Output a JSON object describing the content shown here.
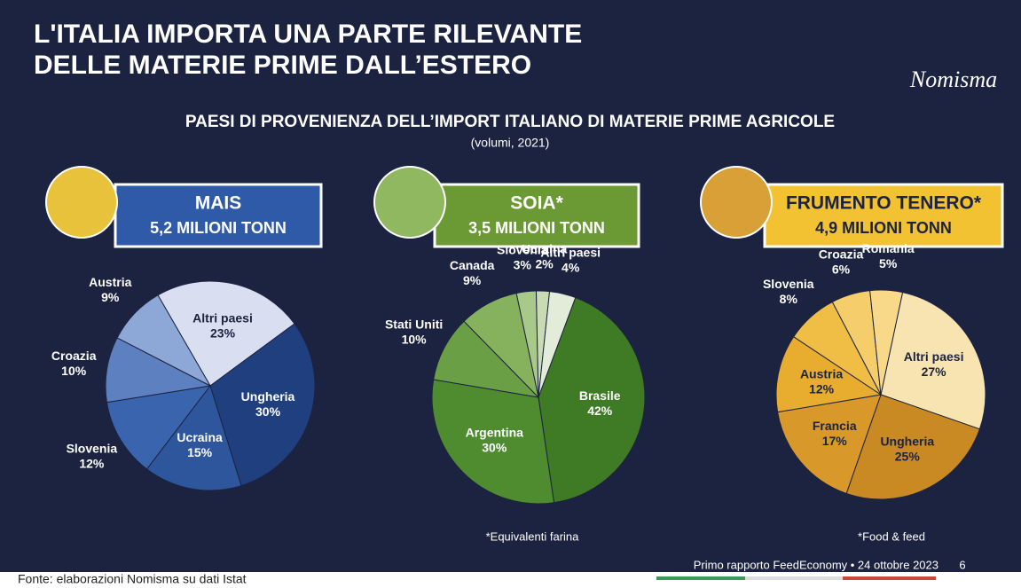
{
  "header": {
    "title_line1": "L'ITALIA IMPORTA UNA PARTE RILEVANTE",
    "title_line2": "DELLE MATERIE PRIME DALL’ESTERO",
    "logo": "Nomisma",
    "subtitle": "PAESI DI PROVENIENZA DELL’IMPORT ITALIANO DI MATERIE PRIME AGRICOLE",
    "subtitle_note": "(volumi, 2021)"
  },
  "chart_data": [
    {
      "type": "pie",
      "title": "MAIS",
      "subtitle": "5,2 MILIONI TONN",
      "categories": [
        "Altri paesi",
        "Ungheria",
        "Ucraina",
        "Slovenia",
        "Croazia",
        "Austria"
      ],
      "values": [
        23,
        30,
        15,
        12,
        10,
        9
      ],
      "value_labels": [
        "23%",
        "30%",
        "15%",
        "12%",
        "10%",
        "9%"
      ],
      "colors": [
        "#d9def0",
        "#1f3f7f",
        "#2e569c",
        "#3a64ad",
        "#5d80c0",
        "#8da7d6"
      ]
    },
    {
      "type": "pie",
      "title": "SOIA*",
      "subtitle": "3,5 MILIONI TONN",
      "note": "*Equivalenti farina",
      "categories": [
        "Slovenia",
        "Ucraina",
        "Altri paesi",
        "Brasile",
        "Argentina",
        "Stati Uniti",
        "Canada"
      ],
      "values": [
        3,
        2,
        4,
        42,
        30,
        10,
        9
      ],
      "value_labels": [
        "3%",
        "2%",
        "4%",
        "42%",
        "30%",
        "10%",
        "9%"
      ],
      "colors": [
        "#a9c98a",
        "#c8dbb4",
        "#e3ecd8",
        "#3f7a25",
        "#4f8c30",
        "#6a9f45",
        "#86b25e"
      ]
    },
    {
      "type": "pie",
      "title": "FRUMENTO TENERO*",
      "subtitle": "4,9 MILIONI TONN",
      "note": "*Food & feed",
      "categories": [
        "Altri paesi",
        "Ungheria",
        "Francia",
        "Austria",
        "Slovenia",
        "Croazia",
        "Romania"
      ],
      "values": [
        27,
        25,
        17,
        12,
        8,
        6,
        5
      ],
      "value_labels": [
        "27%",
        "25%",
        "17%",
        "12%",
        "8%",
        "6%",
        "5%"
      ],
      "colors": [
        "#f8e4b0",
        "#c98a24",
        "#d9992a",
        "#e8ac2e",
        "#f0bd45",
        "#f5cd6a",
        "#f8d98a"
      ]
    }
  ],
  "footer": {
    "source": "Fonte: elaborazioni Nomisma su dati Istat",
    "report": "Primo rapporto FeedEconomy • 24 ottobre 2023",
    "page": "6"
  }
}
